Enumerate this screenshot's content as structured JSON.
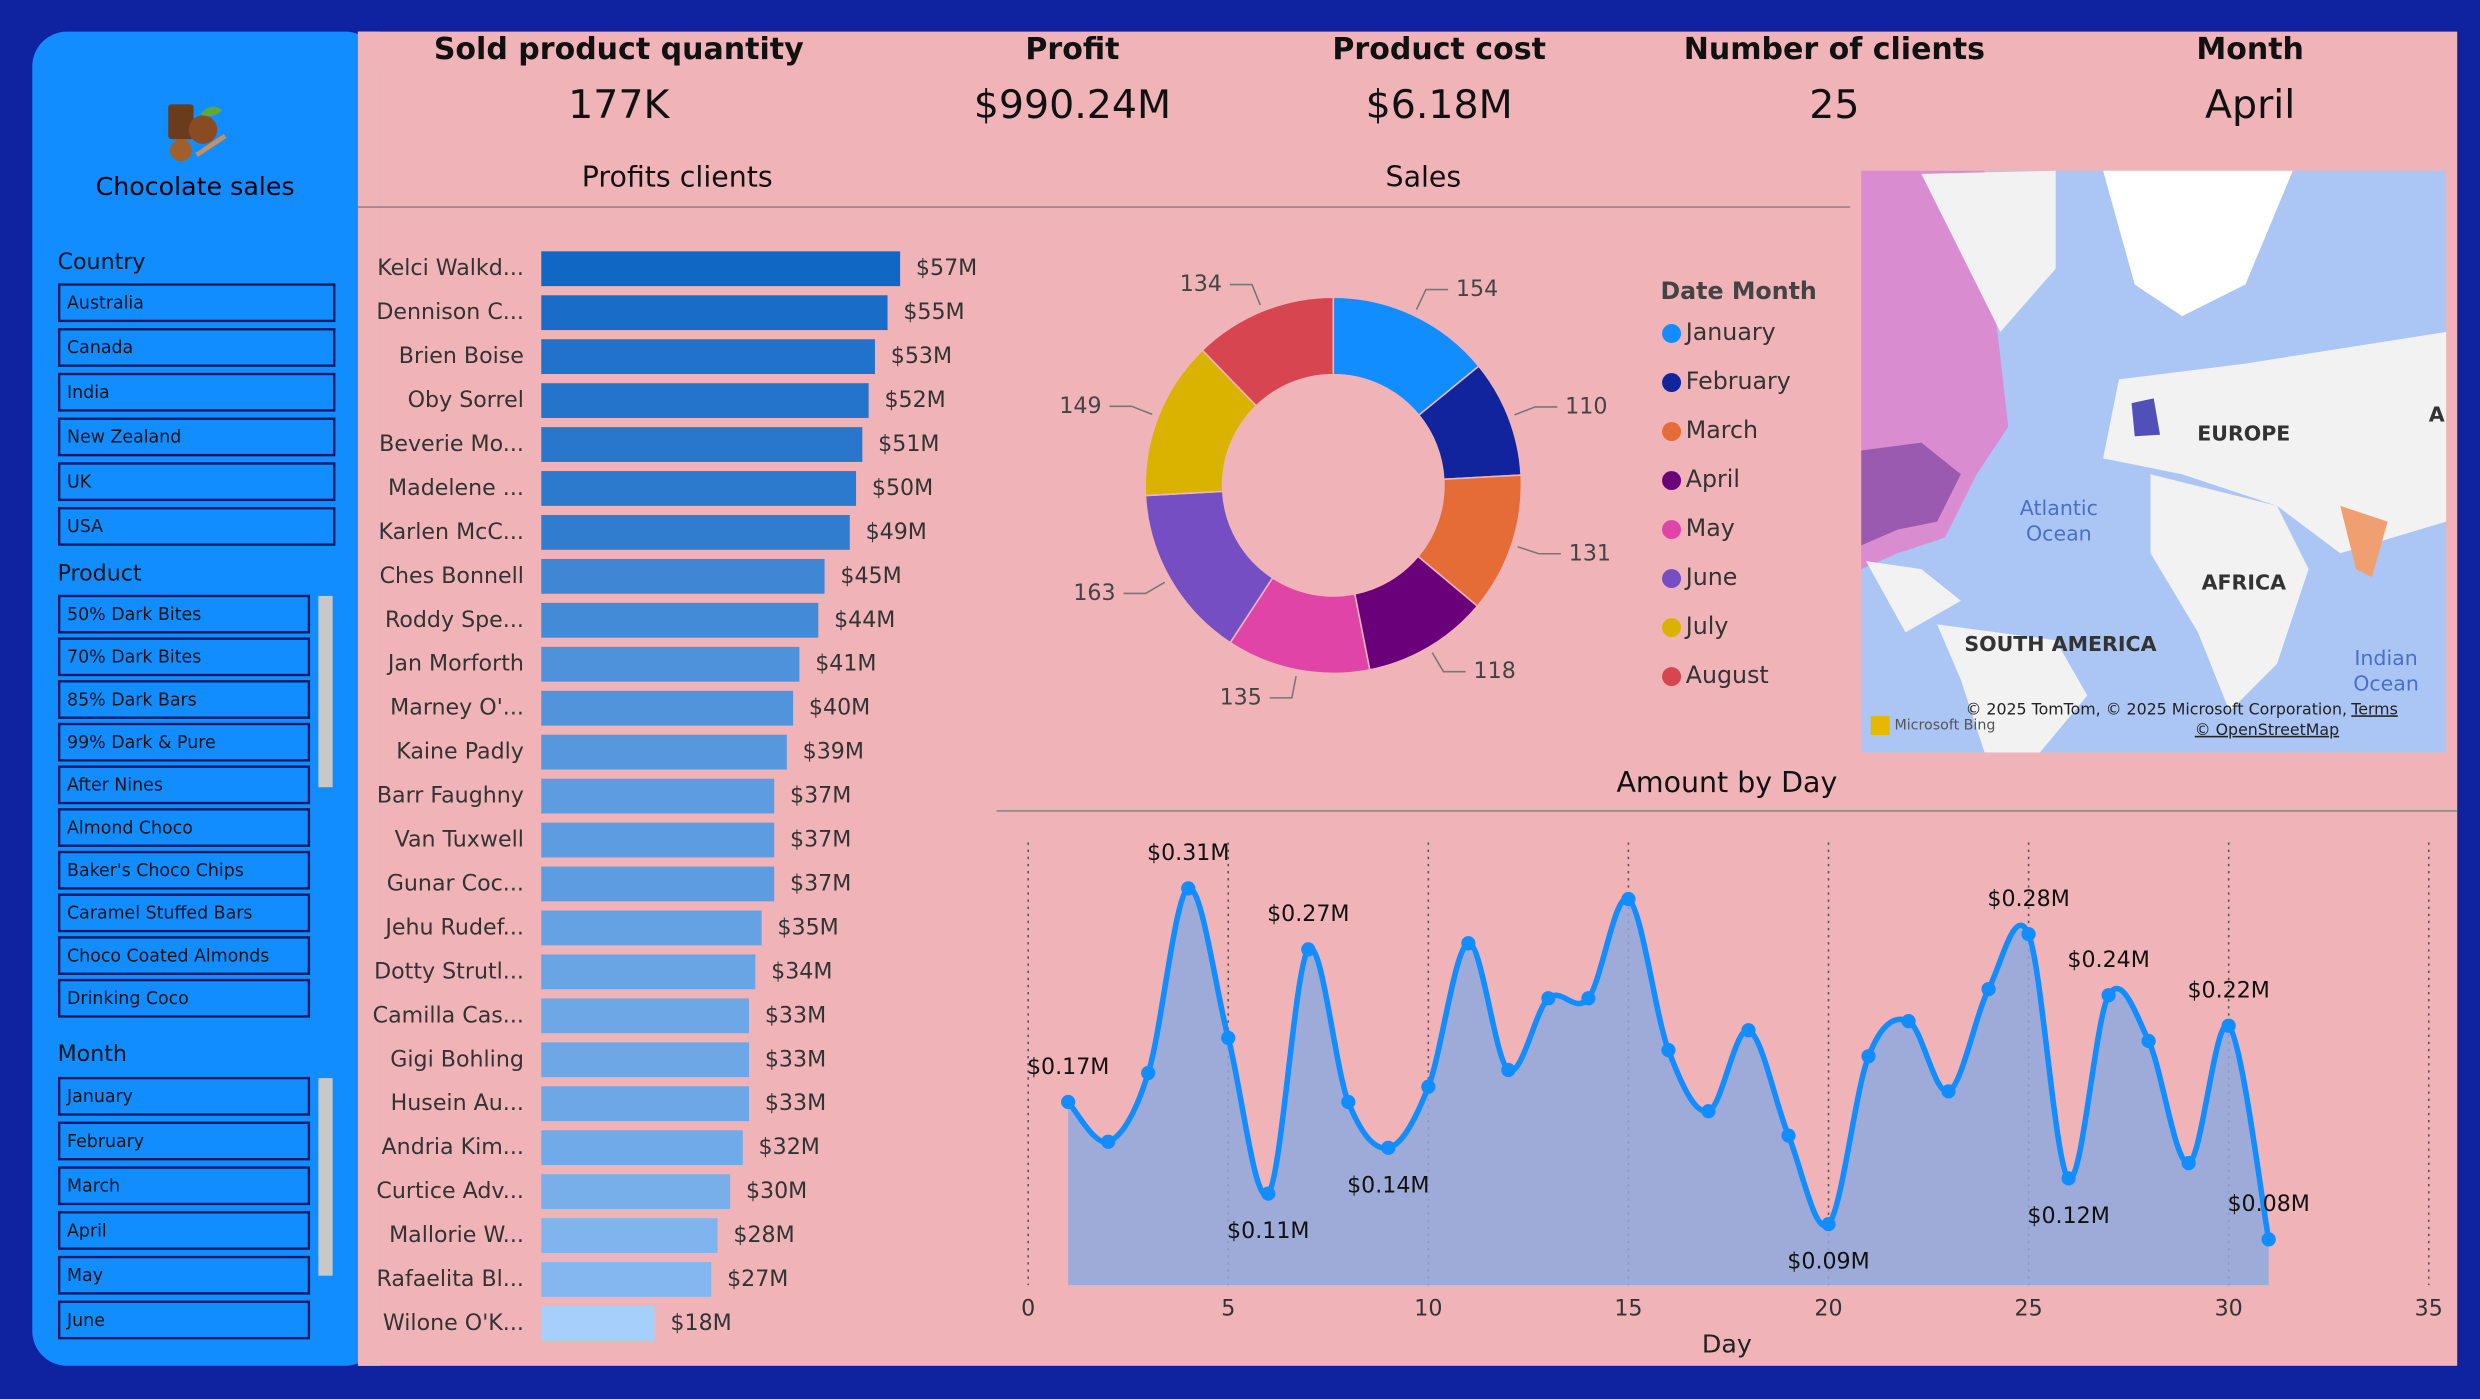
{
  "header": {
    "title": "Chocolate sales"
  },
  "kpis": [
    {
      "label": "Sold product quantity",
      "value": "177K"
    },
    {
      "label": "Profit",
      "value": "$990.24M"
    },
    {
      "label": "Product cost",
      "value": "$6.18M"
    },
    {
      "label": "Number of clients",
      "value": "25"
    },
    {
      "label": "Month",
      "value": "April"
    }
  ],
  "slicers": [
    {
      "title": "Country",
      "items": [
        "Australia",
        "Canada",
        "India",
        "New Zealand",
        "UK",
        "USA"
      ]
    },
    {
      "title": "Product",
      "items": [
        "50% Dark Bites",
        "70% Dark Bites",
        "85% Dark Bars",
        "99% Dark & Pure",
        "After Nines",
        "Almond Choco",
        "Baker's Choco Chips",
        "Caramel Stuffed Bars",
        "Choco Coated Almonds",
        "Drinking Coco"
      ]
    },
    {
      "title": "Month",
      "items": [
        "January",
        "February",
        "March",
        "April",
        "May",
        "June"
      ]
    }
  ],
  "map": {
    "labels": [
      "EUROPE",
      "AFRICA",
      "SOUTH AMERICA",
      "Atlantic Ocean",
      "Indian Ocean",
      "A"
    ],
    "attribution": "© 2025 TomTom, © 2025 Microsoft Corporation,",
    "terms": "Terms",
    "osm": "© OpenStreetMap",
    "brand": "Microsoft Bing"
  },
  "chart_data": [
    {
      "type": "bar",
      "orientation": "horizontal",
      "title": "Profits clients",
      "categories": [
        "Kelci Walkd...",
        "Dennison C...",
        "Brien Boise",
        "Oby Sorrel",
        "Beverie Mo...",
        "Madelene ...",
        "Karlen McC...",
        "Ches Bonnell",
        "Roddy Spe...",
        "Jan Morforth",
        "Marney O'...",
        "Kaine Padly",
        "Barr Faughny",
        "Van Tuxwell",
        "Gunar Coc...",
        "Jehu Rudef...",
        "Dotty Strutl...",
        "Camilla Cas...",
        "Gigi Bohling",
        "Husein Au...",
        "Andria Kim...",
        "Curtice Adv...",
        "Mallorie W...",
        "Rafaelita Bl...",
        "Wilone O'K..."
      ],
      "values": [
        57,
        55,
        53,
        52,
        51,
        50,
        49,
        45,
        44,
        41,
        40,
        39,
        37,
        37,
        37,
        35,
        34,
        33,
        33,
        33,
        32,
        30,
        28,
        27,
        18
      ],
      "value_labels": [
        "$57M",
        "$55M",
        "$53M",
        "$52M",
        "$51M",
        "$50M",
        "$49M",
        "$45M",
        "$44M",
        "$41M",
        "$40M",
        "$39M",
        "$37M",
        "$37M",
        "$37M",
        "$35M",
        "$34M",
        "$33M",
        "$33M",
        "$33M",
        "$32M",
        "$30M",
        "$28M",
        "$27M",
        "$18M"
      ],
      "color_scale": [
        "#a6cffc",
        "#1167c4"
      ]
    },
    {
      "type": "pie",
      "donut": true,
      "title": "Sales",
      "legend_title": "Date Month",
      "categories": [
        "January",
        "February",
        "March",
        "April",
        "May",
        "June",
        "July",
        "August"
      ],
      "values": [
        154,
        110,
        131,
        118,
        135,
        163,
        149,
        134
      ],
      "colors": [
        "#118dff",
        "#12239e",
        "#e66c37",
        "#6b007b",
        "#e044a7",
        "#744ec2",
        "#d9b300",
        "#d64550"
      ]
    },
    {
      "type": "line",
      "area": true,
      "title": "Amount by Day",
      "xlabel": "Day",
      "x": [
        1,
        2,
        3,
        4,
        5,
        6,
        7,
        8,
        9,
        10,
        11,
        12,
        13,
        14,
        15,
        16,
        17,
        18,
        19,
        20,
        21,
        22,
        23,
        24,
        25,
        26,
        27,
        28,
        29,
        30,
        31
      ],
      "values": [
        0.17,
        0.144,
        0.189,
        0.31,
        0.212,
        0.11,
        0.27,
        0.17,
        0.14,
        0.18,
        0.274,
        0.191,
        0.238,
        0.238,
        0.303,
        0.204,
        0.164,
        0.217,
        0.148,
        0.09,
        0.2,
        0.223,
        0.177,
        0.244,
        0.28,
        0.12,
        0.24,
        0.21,
        0.13,
        0.22,
        0.08
      ],
      "value_labels": [
        "$0.17M",
        null,
        null,
        "$0.31M",
        null,
        "$0.11M",
        "$0.27M",
        null,
        "$0.14M",
        null,
        null,
        null,
        null,
        null,
        null,
        null,
        null,
        null,
        null,
        "$0.09M",
        null,
        null,
        null,
        null,
        "$0.28M",
        "$0.12M",
        "$0.24M",
        null,
        null,
        "$0.22M",
        "$0.08M"
      ],
      "xlim": [
        0,
        35
      ],
      "xticks": [
        0,
        5,
        10,
        15,
        20,
        25,
        30,
        35
      ],
      "ylim": [
        0.05,
        0.34
      ],
      "grid": true,
      "color": "#118dff",
      "area_color": "#8fa8dc"
    }
  ]
}
